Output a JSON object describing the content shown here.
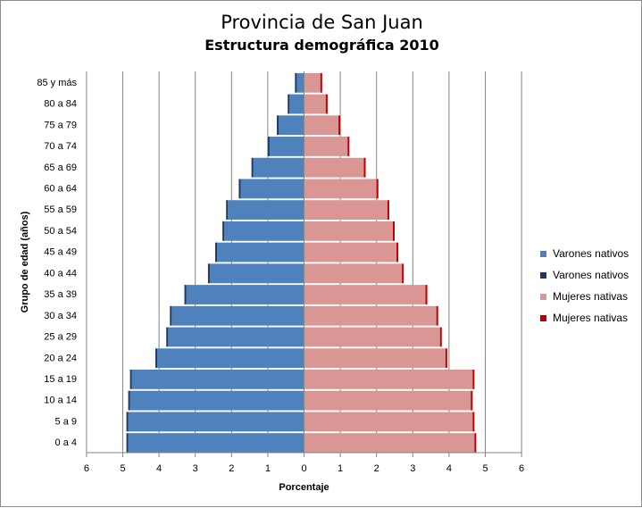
{
  "chart_data": {
    "type": "bar",
    "orientation": "horizontal",
    "style": "population-pyramid",
    "title": "Provincia de San Juan",
    "subtitle": "Estructura demográfica 2010",
    "xlabel": "Porcentaje",
    "ylabel": "Grupo de edad (años)",
    "xlim": [
      -6,
      6
    ],
    "x_tick_labels": [
      "6",
      "5",
      "4",
      "3",
      "2",
      "1",
      "0",
      "1",
      "2",
      "3",
      "4",
      "5",
      "6"
    ],
    "categories": [
      "0 a 4",
      "5 a 9",
      "10 a 14",
      "15 a 19",
      "20 a 24",
      "25 a 29",
      "30 a 34",
      "35 a 39",
      "40 a 44",
      "45 a 49",
      "50 a 54",
      "55 a 59",
      "60 a 64",
      "65 a 69",
      "70 a 74",
      "75 a 79",
      "80 a 84",
      "85 y más"
    ],
    "series": [
      {
        "name": "Varones nativos",
        "color": "#4f81bd",
        "side": "left",
        "values": [
          4.85,
          4.85,
          4.8,
          4.75,
          4.05,
          3.75,
          3.65,
          3.25,
          2.6,
          2.4,
          2.2,
          2.1,
          1.75,
          1.4,
          0.95,
          0.7,
          0.4,
          0.2
        ]
      },
      {
        "name": "Varones nativos",
        "color": "#1f3864",
        "side": "left",
        "values": [
          0.05,
          0.05,
          0.05,
          0.05,
          0.05,
          0.05,
          0.05,
          0.05,
          0.05,
          0.05,
          0.05,
          0.05,
          0.05,
          0.05,
          0.05,
          0.05,
          0.05,
          0.05
        ]
      },
      {
        "name": "Mujeres nativas",
        "color": "#da9694",
        "side": "right",
        "values": [
          4.7,
          4.65,
          4.6,
          4.65,
          3.9,
          3.75,
          3.65,
          3.35,
          2.7,
          2.55,
          2.45,
          2.3,
          2.0,
          1.65,
          1.2,
          0.95,
          0.6,
          0.45
        ]
      },
      {
        "name": "Mujeres nativas",
        "color": "#c00000",
        "side": "right",
        "values": [
          0.05,
          0.05,
          0.05,
          0.05,
          0.05,
          0.05,
          0.05,
          0.05,
          0.05,
          0.05,
          0.05,
          0.05,
          0.05,
          0.05,
          0.05,
          0.05,
          0.05,
          0.05
        ]
      }
    ],
    "grid": "vertical",
    "legend_position": "right"
  }
}
